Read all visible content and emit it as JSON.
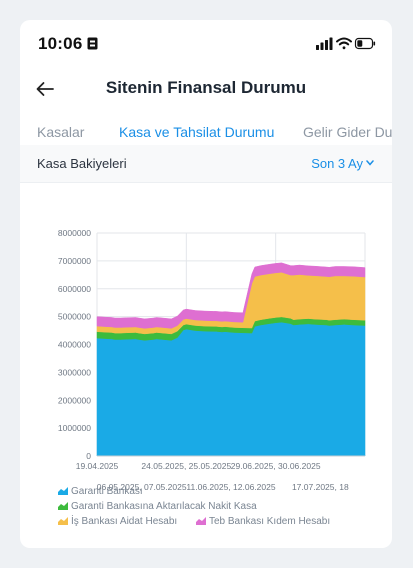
{
  "status_bar": {
    "time": "10:06",
    "icons": [
      "lock-icon",
      "signal-icon",
      "wifi-icon",
      "battery-icon"
    ]
  },
  "header": {
    "back_icon": "arrow-left-icon",
    "title": "Sitenin Finansal Durumu"
  },
  "tabs": [
    {
      "label": "Kasalar",
      "active": false
    },
    {
      "label": "Kasa ve Tahsilat Durumu",
      "active": true
    },
    {
      "label": "Gelir Gider Dur",
      "active": false
    }
  ],
  "panel": {
    "label": "Kasa Bakiyeleri",
    "period": "Son 3 Ay"
  },
  "colors": {
    "accent": "#1a8fe6",
    "garanti": "#1aaae6",
    "aktarilacak": "#3dbb3d",
    "is_bankasi": "#f5bf4a",
    "teb": "#de6fd1"
  },
  "chart_data": {
    "type": "area",
    "stacked": true,
    "ylim": [
      0,
      8000000
    ],
    "yticks": [
      "8000000",
      "7000000",
      "6000000",
      "5000000",
      "4000000",
      "3000000",
      "2000000",
      "1000000",
      "0"
    ],
    "xtick_labels_row1": [
      "19.04.2025",
      "24.05.2025, 25.05.2025",
      "29.06.2025, 30.06.2025"
    ],
    "xtick_labels_row2": [
      "06.05.2025, 07.05.2025",
      "11.06.2025, 12.06.2025",
      "17.07.2025, 18"
    ],
    "x": [
      0,
      3,
      5,
      6,
      8,
      10,
      13,
      14,
      16,
      19,
      20,
      22,
      25,
      26,
      27,
      29,
      30,
      33,
      36,
      39,
      40,
      42,
      43,
      46,
      49,
      52,
      53,
      55,
      58,
      60,
      62,
      65,
      66,
      68,
      71,
      73,
      77,
      78,
      80,
      83,
      86,
      90
    ],
    "series": [
      {
        "name": "Garanti Bankası",
        "color_key": "garanti",
        "values": [
          4230000,
          4210000,
          4200000,
          4180000,
          4180000,
          4190000,
          4200000,
          4180000,
          4150000,
          4180000,
          4200000,
          4180000,
          4150000,
          4200000,
          4250000,
          4520000,
          4550000,
          4500000,
          4480000,
          4470000,
          4470000,
          4450000,
          4460000,
          4430000,
          4420000,
          4410000,
          4650000,
          4700000,
          4750000,
          4780000,
          4800000,
          4750000,
          4700000,
          4720000,
          4740000,
          4720000,
          4700000,
          4680000,
          4700000,
          4720000,
          4700000,
          4680000
        ]
      },
      {
        "name": "Garanti Bankasına Aktarılacak Nakit Kasa",
        "color_key": "aktarilacak",
        "values": [
          230000,
          230000,
          230000,
          230000,
          230000,
          230000,
          230000,
          230000,
          230000,
          230000,
          230000,
          230000,
          230000,
          230000,
          230000,
          180000,
          180000,
          180000,
          180000,
          180000,
          180000,
          180000,
          180000,
          180000,
          180000,
          180000,
          190000,
          190000,
          190000,
          190000,
          190000,
          190000,
          190000,
          190000,
          190000,
          190000,
          190000,
          190000,
          190000,
          190000,
          190000,
          190000
        ]
      },
      {
        "name": "İş Bankası Aidat Hesabı",
        "color_key": "is_bankasi",
        "values": [
          200000,
          200000,
          200000,
          200000,
          200000,
          200000,
          200000,
          200000,
          200000,
          200000,
          200000,
          200000,
          200000,
          200000,
          200000,
          200000,
          200000,
          200000,
          200000,
          200000,
          200000,
          200000,
          200000,
          200000,
          200000,
          1600000,
          1600000,
          1600000,
          1600000,
          1600000,
          1600000,
          1550000,
          1600000,
          1600000,
          1550000,
          1560000,
          1550000,
          1560000,
          1570000,
          1550000,
          1560000,
          1550000
        ]
      },
      {
        "name": "Teb Bankası Kıdem Hesabı",
        "color_key": "teb",
        "values": [
          340000,
          340000,
          340000,
          340000,
          340000,
          340000,
          340000,
          340000,
          340000,
          340000,
          340000,
          340000,
          340000,
          340000,
          340000,
          340000,
          340000,
          340000,
          340000,
          340000,
          340000,
          340000,
          340000,
          340000,
          340000,
          340000,
          340000,
          340000,
          340000,
          340000,
          340000,
          340000,
          340000,
          340000,
          340000,
          340000,
          340000,
          340000,
          340000,
          340000,
          340000,
          340000
        ]
      }
    ]
  }
}
